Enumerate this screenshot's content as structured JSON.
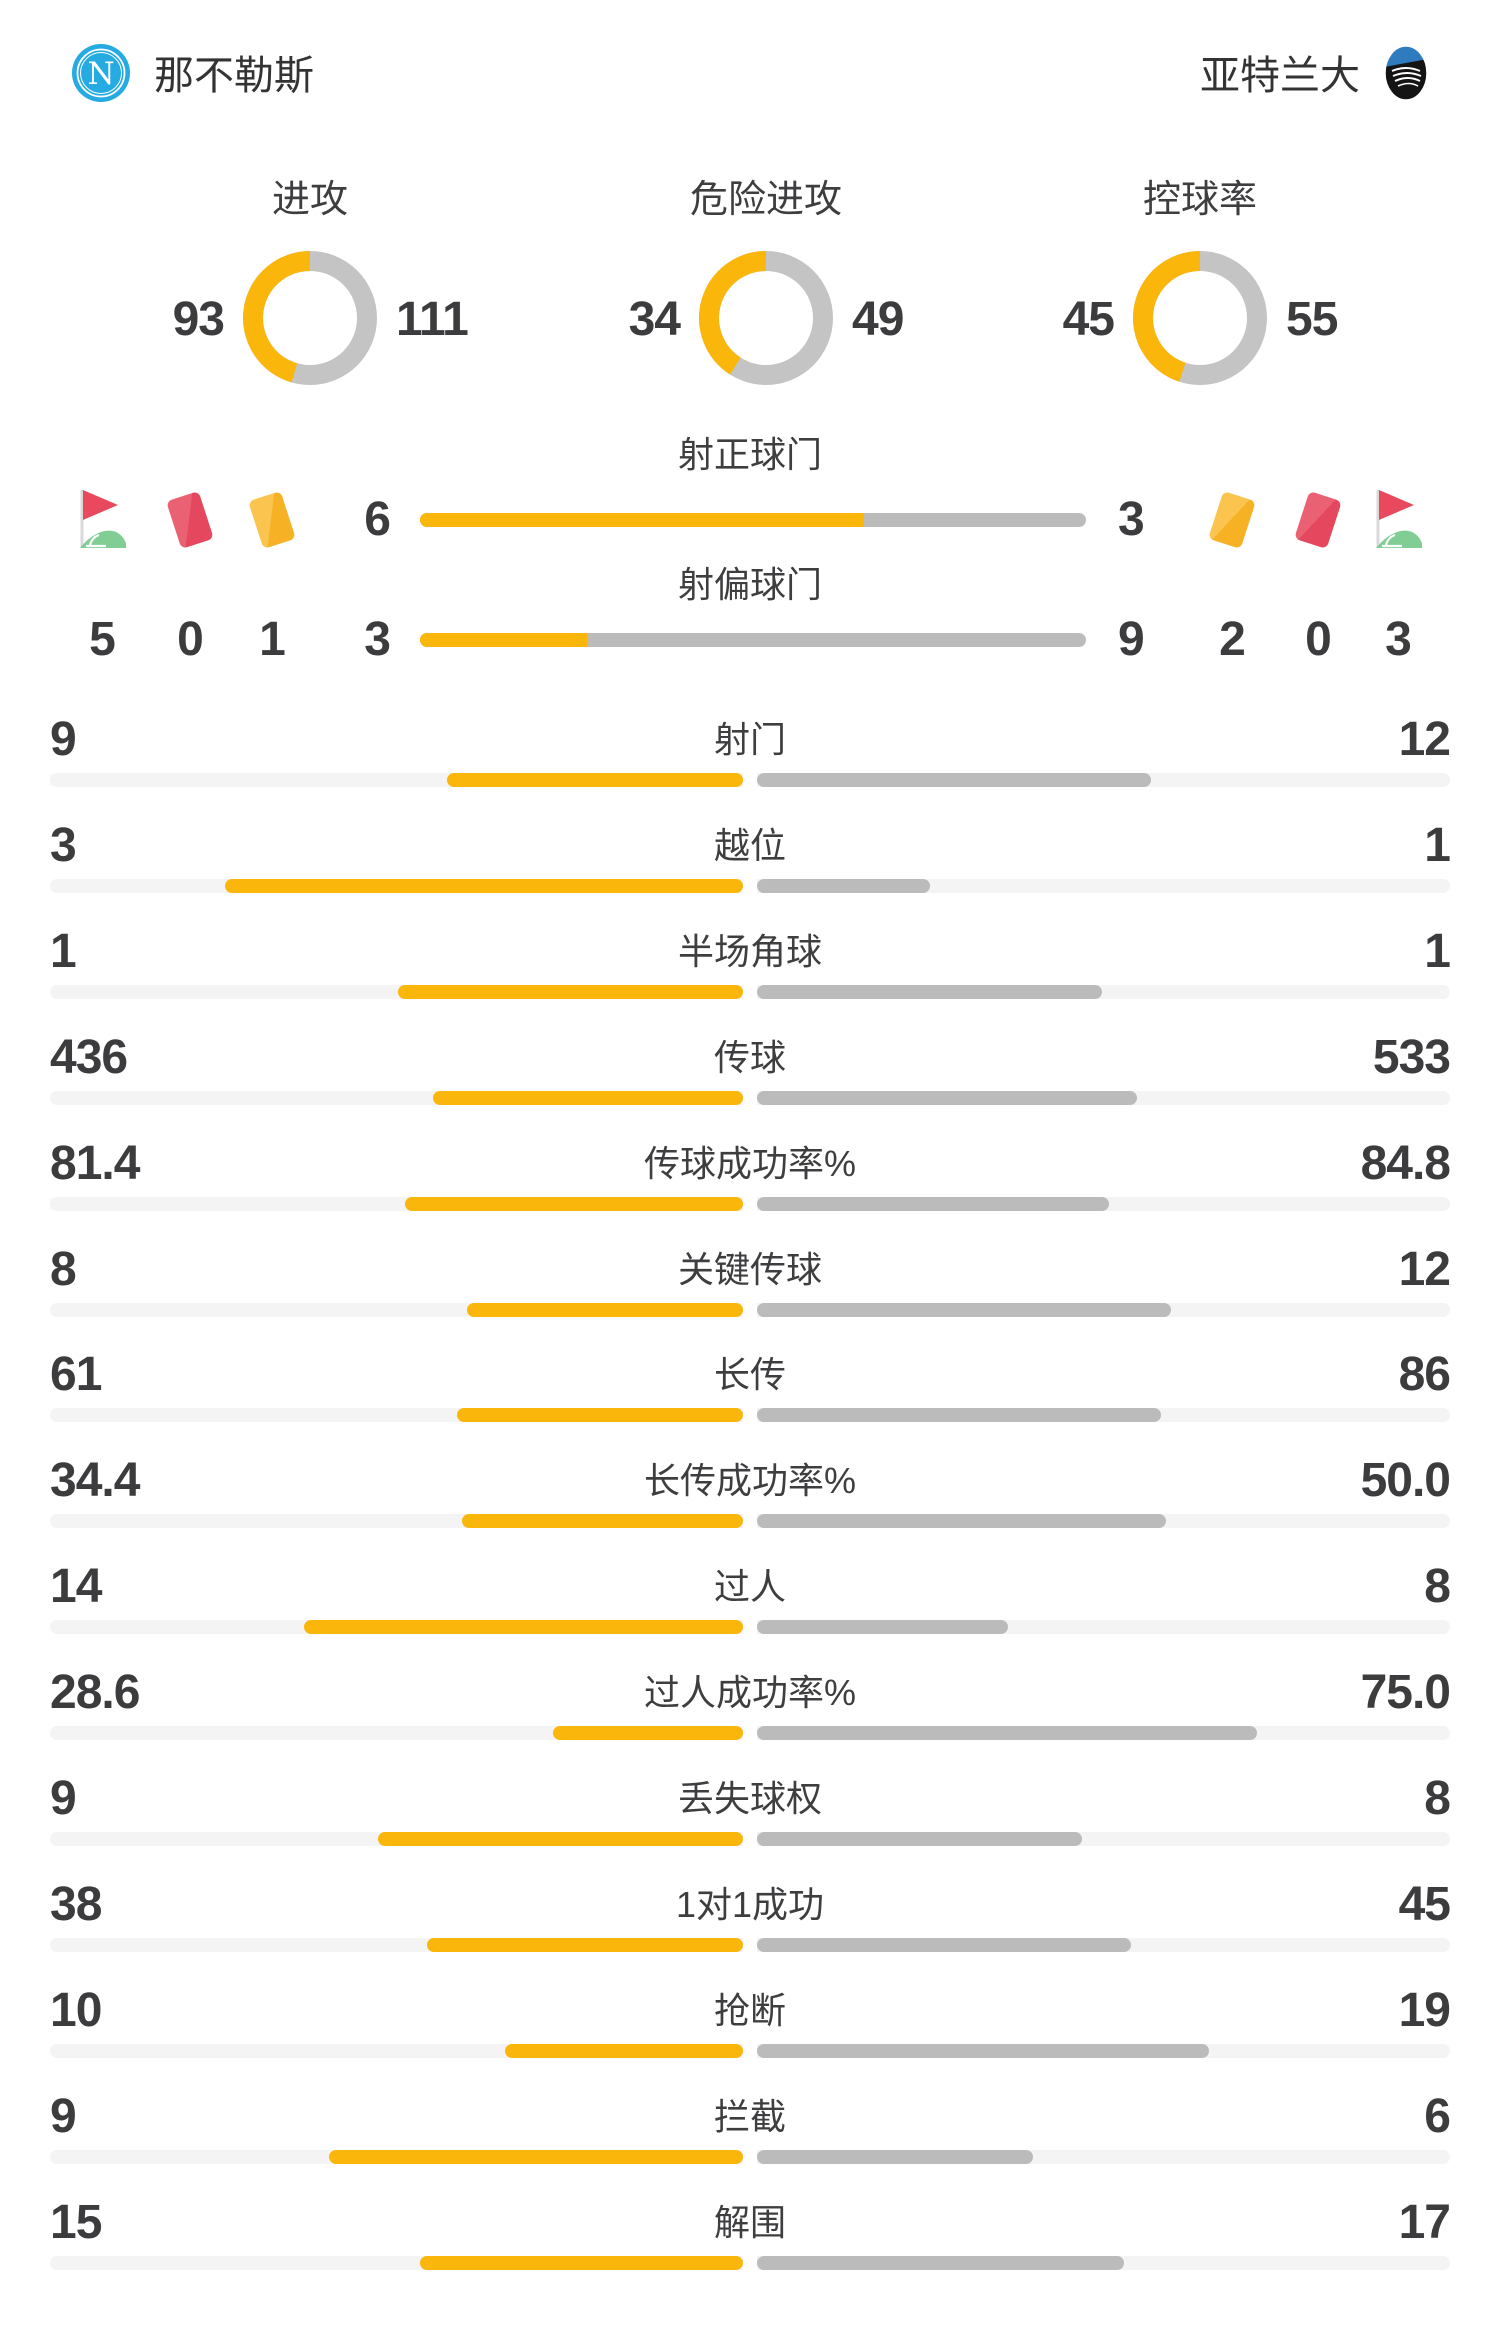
{
  "header": {
    "home": {
      "name": "那不勒斯",
      "logo": "napoli-crest"
    },
    "away": {
      "name": "亚特兰大",
      "logo": "atalanta-crest"
    }
  },
  "colors": {
    "accent_yellow": "#FBB60B",
    "bar_gray": "#BBBBBB",
    "donut_gray": "#C4C4C4",
    "track_gray": "#F4F4F4",
    "text_dark": "#3C3C3E",
    "napoli_blue": "#25AAE1",
    "card_red": "#E5485E",
    "card_yellow": "#F6B125",
    "flag_red": "#E8495C",
    "flag_green": "#80CE93"
  },
  "chart_data": {
    "type": "table",
    "teams": [
      "那不勒斯",
      "亚特兰大"
    ],
    "legend_position": "home-left-away-right",
    "donut_charts": [
      {
        "type": "donut",
        "label": "进攻",
        "home": "93",
        "away": "111"
      },
      {
        "type": "donut",
        "label": "危险进攻",
        "home": "34",
        "away": "49"
      },
      {
        "type": "donut",
        "label": "控球率",
        "home": "45",
        "away": "55"
      }
    ],
    "shot_bars": [
      {
        "type": "bar",
        "label": "射正球门",
        "home": "6",
        "away": "3"
      },
      {
        "type": "bar",
        "label": "射偏球门",
        "home": "3",
        "away": "9"
      }
    ],
    "discipline": {
      "home": {
        "corners": "5",
        "red_cards": "0",
        "yellow_cards": "1"
      },
      "away": {
        "yellow_cards": "2",
        "red_cards": "0",
        "corners": "3"
      }
    },
    "stat_rows": [
      {
        "label": "射门",
        "home": "9",
        "away": "12"
      },
      {
        "label": "越位",
        "home": "3",
        "away": "1"
      },
      {
        "label": "半场角球",
        "home": "1",
        "away": "1"
      },
      {
        "label": "传球",
        "home": "436",
        "away": "533"
      },
      {
        "label": "传球成功率%",
        "home": "81.4",
        "away": "84.8"
      },
      {
        "label": "关键传球",
        "home": "8",
        "away": "12"
      },
      {
        "label": "长传",
        "home": "61",
        "away": "86"
      },
      {
        "label": "长传成功率%",
        "home": "34.4",
        "away": "50.0"
      },
      {
        "label": "过人",
        "home": "14",
        "away": "8"
      },
      {
        "label": "过人成功率%",
        "home": "28.6",
        "away": "75.0"
      },
      {
        "label": "丢失球权",
        "home": "9",
        "away": "8"
      },
      {
        "label": "1对1成功",
        "home": "38",
        "away": "45"
      },
      {
        "label": "抢断",
        "home": "10",
        "away": "19"
      },
      {
        "label": "拦截",
        "home": "9",
        "away": "6"
      },
      {
        "label": "解围",
        "home": "15",
        "away": "17"
      }
    ]
  }
}
